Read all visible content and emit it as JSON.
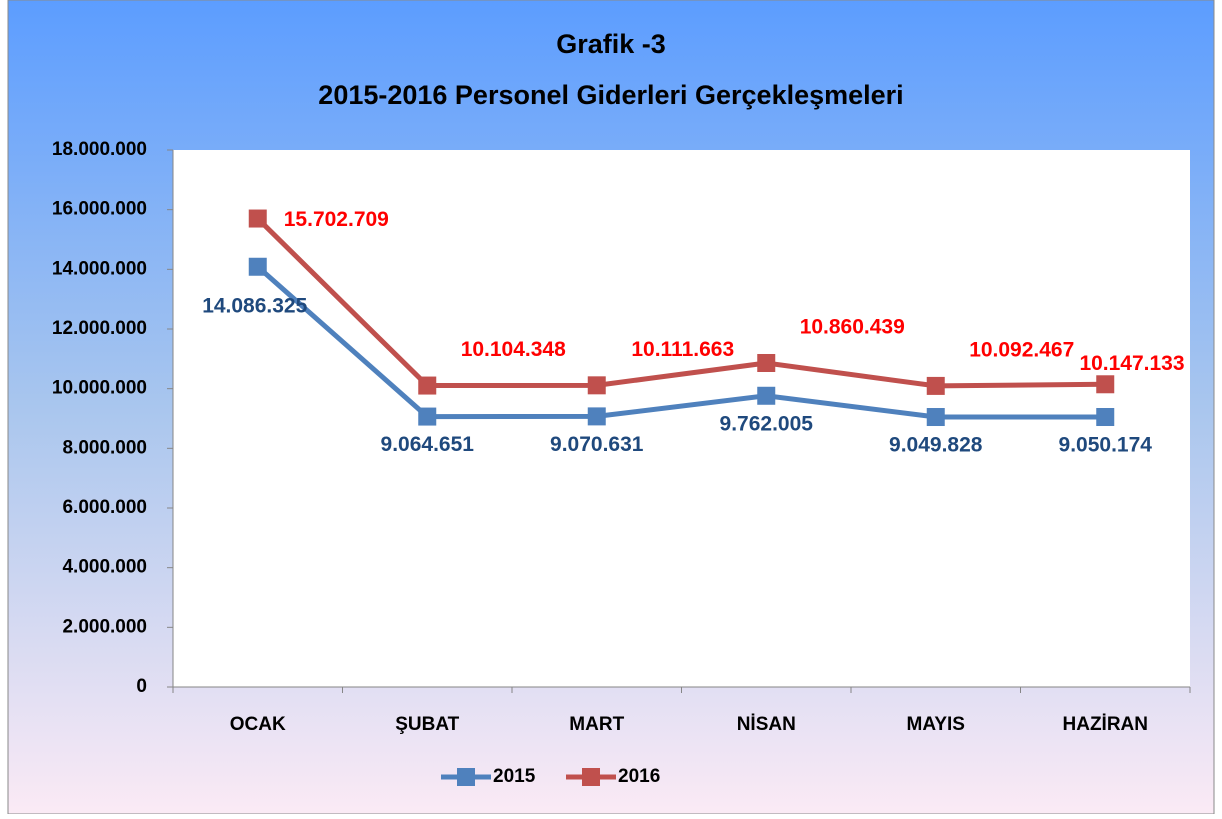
{
  "chart_data": {
    "type": "line",
    "title": "Grafik -3",
    "subtitle": "2015-2016 Personel Giderleri Gerçekleşmeleri",
    "categories": [
      "OCAK",
      "ŞUBAT",
      "MART",
      "NİSAN",
      "MAYIS",
      "HAZİRAN"
    ],
    "series": [
      {
        "name": "2015",
        "color": "#4f81bd",
        "label_color": "#1f497d",
        "values": [
          14086325,
          9064651,
          9070631,
          9762005,
          9049828,
          9050174
        ],
        "value_labels": [
          "14.086.325",
          "9.064.651",
          "9.070.631",
          "9.762.005",
          "9.049.828",
          "9.050.174"
        ]
      },
      {
        "name": "2016",
        "color": "#c0504d",
        "label_color": "#ff0000",
        "values": [
          15702709,
          10104348,
          10111663,
          10860439,
          10092467,
          10147133
        ],
        "value_labels": [
          "15.702.709",
          "10.104.348",
          "10.111.663",
          "10.860.439",
          "10.092.467",
          "10.147.133"
        ]
      }
    ],
    "ylim": [
      0,
      18000000
    ],
    "yticks": [
      0,
      {
        "value": 2000000,
        "label": "2.000.000"
      },
      {
        "value": 4000000,
        "label": "4.000.000"
      },
      {
        "value": 6000000,
        "label": "6.000.000"
      },
      {
        "value": 8000000,
        "label": "8.000.000"
      },
      {
        "value": 10000000,
        "label": "10.000.000"
      },
      {
        "value": 12000000,
        "label": "12.000.000"
      },
      {
        "value": 14000000,
        "label": "14.000.000"
      },
      {
        "value": 16000000,
        "label": "16.000.000"
      },
      {
        "value": 18000000,
        "label": "18.000.000"
      }
    ],
    "grid": false,
    "legend": "bottom"
  }
}
